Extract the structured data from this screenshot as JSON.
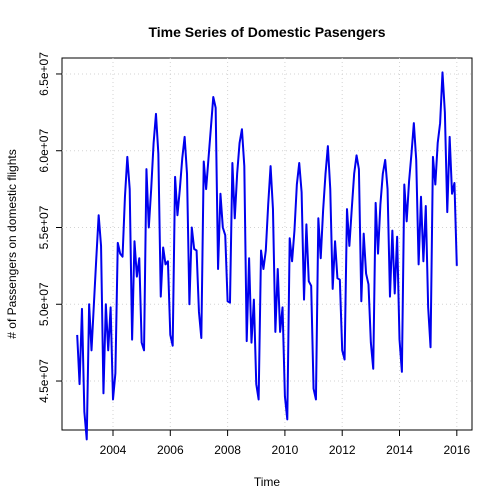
{
  "chart_data": {
    "type": "line",
    "title": "Time Series of Domestic Pasengers",
    "x_label": "Time",
    "y_label": "# of Passengers on domestic flights",
    "x": [
      2002.75,
      2002.833,
      2002.917,
      2003,
      2003.083,
      2003.167,
      2003.25,
      2003.333,
      2003.417,
      2003.5,
      2003.583,
      2003.667,
      2003.75,
      2003.833,
      2003.917,
      2004,
      2004.083,
      2004.167,
      2004.25,
      2004.333,
      2004.417,
      2004.5,
      2004.583,
      2004.667,
      2004.75,
      2004.833,
      2004.917,
      2005,
      2005.083,
      2005.167,
      2005.25,
      2005.333,
      2005.417,
      2005.5,
      2005.583,
      2005.667,
      2005.75,
      2005.833,
      2005.917,
      2006,
      2006.083,
      2006.167,
      2006.25,
      2006.333,
      2006.417,
      2006.5,
      2006.583,
      2006.667,
      2006.75,
      2006.833,
      2006.917,
      2007,
      2007.083,
      2007.167,
      2007.25,
      2007.333,
      2007.417,
      2007.5,
      2007.583,
      2007.667,
      2007.75,
      2007.833,
      2007.917,
      2008,
      2008.083,
      2008.167,
      2008.25,
      2008.333,
      2008.417,
      2008.5,
      2008.583,
      2008.667,
      2008.75,
      2008.833,
      2008.917,
      2009,
      2009.083,
      2009.167,
      2009.25,
      2009.333,
      2009.417,
      2009.5,
      2009.583,
      2009.667,
      2009.75,
      2009.833,
      2009.917,
      2010,
      2010.083,
      2010.167,
      2010.25,
      2010.333,
      2010.417,
      2010.5,
      2010.583,
      2010.667,
      2010.75,
      2010.833,
      2010.917,
      2011,
      2011.083,
      2011.167,
      2011.25,
      2011.333,
      2011.417,
      2011.5,
      2011.583,
      2011.667,
      2011.75,
      2011.833,
      2011.917,
      2012,
      2012.083,
      2012.167,
      2012.25,
      2012.333,
      2012.417,
      2012.5,
      2012.583,
      2012.667,
      2012.75,
      2012.833,
      2012.917,
      2013,
      2013.083,
      2013.167,
      2013.25,
      2013.333,
      2013.417,
      2013.5,
      2013.583,
      2013.667,
      2013.75,
      2013.833,
      2013.917,
      2014,
      2014.083,
      2014.167,
      2014.25,
      2014.333,
      2014.417,
      2014.5,
      2014.583,
      2014.667,
      2014.75,
      2014.833,
      2014.917,
      2015,
      2015.083,
      2015.167,
      2015.25,
      2015.333,
      2015.417,
      2015.5,
      2015.583,
      2015.667,
      2015.75,
      2015.833,
      2015.917,
      2016
    ],
    "series": [
      {
        "name": "Domestic Passengers",
        "color": "#0000ee",
        "values": [
          48000000,
          44800000,
          49700000,
          43000000,
          41200000,
          50000000,
          47000000,
          50000000,
          53000000,
          55800000,
          53800000,
          44200000,
          50000000,
          47000000,
          49800000,
          43800000,
          45500000,
          54000000,
          53300000,
          53100000,
          57000000,
          59600000,
          57500000,
          47700000,
          54100000,
          51800000,
          53000000,
          47500000,
          47000000,
          58800000,
          55000000,
          57500000,
          60500000,
          62400000,
          59800000,
          50500000,
          53700000,
          52600000,
          52800000,
          48000000,
          47300000,
          58300000,
          55800000,
          57500000,
          59500000,
          60900000,
          58500000,
          50000000,
          55000000,
          53600000,
          53500000,
          49500000,
          47800000,
          59300000,
          57500000,
          59500000,
          61500000,
          63500000,
          62800000,
          52300000,
          57200000,
          55000000,
          54500000,
          50200000,
          50100000,
          59200000,
          55600000,
          58500000,
          60500000,
          61400000,
          59000000,
          47600000,
          53000000,
          47500000,
          50300000,
          44800000,
          43800000,
          53500000,
          52300000,
          53500000,
          56500000,
          59000000,
          56200000,
          48200000,
          52300000,
          48200000,
          49800000,
          44000000,
          42500000,
          54300000,
          52800000,
          54800000,
          57800000,
          59200000,
          57300000,
          50300000,
          55200000,
          51500000,
          51200000,
          44500000,
          43800000,
          55600000,
          53000000,
          56100000,
          58500000,
          60300000,
          57500000,
          51000000,
          54100000,
          51700000,
          51600000,
          47000000,
          46400000,
          56200000,
          53800000,
          56200000,
          58500000,
          59700000,
          58800000,
          50200000,
          54600000,
          52000000,
          51300000,
          47500000,
          45800000,
          56600000,
          53300000,
          56500000,
          58500000,
          59400000,
          57500000,
          50500000,
          54800000,
          50700000,
          54400000,
          47700000,
          45600000,
          57800000,
          55400000,
          58000000,
          59800000,
          61800000,
          59400000,
          52600000,
          57000000,
          52800000,
          56400000,
          49800000,
          47200000,
          59600000,
          57800000,
          60500000,
          61800000,
          65100000,
          62500000,
          56000000,
          60900000,
          57200000,
          57900000,
          52500000
        ]
      }
    ],
    "xlim": [
      2002.22,
      2016.53
    ],
    "ylim": [
      41810000,
      66040000
    ],
    "xticks": [
      2004,
      2006,
      2008,
      2010,
      2012,
      2014,
      2016
    ],
    "yticks": [
      {
        "value": 45000000,
        "label": "4.5e+07"
      },
      {
        "value": 50000000,
        "label": "5.0e+07"
      },
      {
        "value": 55000000,
        "label": "5.5e+07"
      },
      {
        "value": 60000000,
        "label": "6.0e+07"
      },
      {
        "value": 65000000,
        "label": "6.5e+07"
      }
    ],
    "grid": true
  }
}
